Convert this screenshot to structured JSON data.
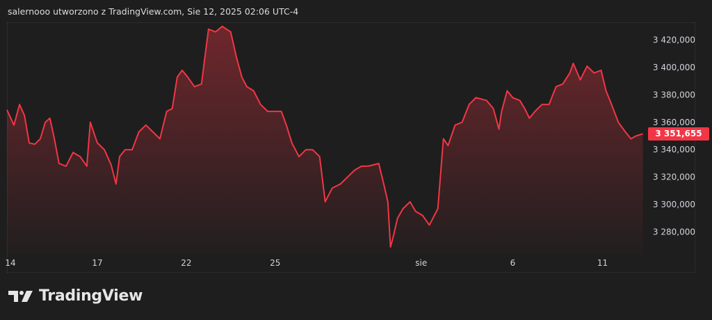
{
  "header": {
    "attribution": "salernooo utworzono z TradingView.com, Sie 12, 2025 02:06 UTC-4"
  },
  "brand": {
    "name": "TradingView",
    "icon": "tradingview-logo-icon"
  },
  "colors": {
    "line": "#f23645",
    "background": "#1e1e1e",
    "axis_text": "#d1d4dc"
  },
  "chart_data": {
    "type": "area",
    "title": "",
    "xlabel": "",
    "ylabel": "",
    "x_units": "trading days since Jul 14",
    "xlim": [
      -0.12,
      21.7
    ],
    "ylim": [
      3264,
      3433
    ],
    "grid": false,
    "x_ticks": [
      {
        "value": 0,
        "label": "14"
      },
      {
        "value": 2.97,
        "label": "17"
      },
      {
        "value": 6.01,
        "label": "22"
      },
      {
        "value": 9.05,
        "label": "25"
      },
      {
        "value": 14.04,
        "label": "sie"
      },
      {
        "value": 17.17,
        "label": "6"
      },
      {
        "value": 20.24,
        "label": "11"
      }
    ],
    "y_ticks": [
      {
        "value": 3420,
        "label": "3 420,000"
      },
      {
        "value": 3400,
        "label": "3 400,000"
      },
      {
        "value": 3380,
        "label": "3 380,000"
      },
      {
        "value": 3360,
        "label": "3 360,000"
      },
      {
        "value": 3340,
        "label": "3 340,000"
      },
      {
        "value": 3320,
        "label": "3 320,000"
      },
      {
        "value": 3300,
        "label": "3 300,000"
      },
      {
        "value": 3280,
        "label": "3 280,000"
      }
    ],
    "last_price": {
      "value": 3351.655,
      "label": "3 351,655"
    },
    "series": [
      {
        "name": "price",
        "x": [
          -0.12,
          0.12,
          0.31,
          0.48,
          0.64,
          0.83,
          1.02,
          1.19,
          1.35,
          1.5,
          1.66,
          1.9,
          2.14,
          2.38,
          2.61,
          2.73,
          2.97,
          3.21,
          3.44,
          3.61,
          3.73,
          3.92,
          4.16,
          4.39,
          4.63,
          4.87,
          5.11,
          5.34,
          5.53,
          5.7,
          5.87,
          6.06,
          6.29,
          6.53,
          6.65,
          6.77,
          7.01,
          7.24,
          7.53,
          7.72,
          7.91,
          8.08,
          8.31,
          8.55,
          8.79,
          9.03,
          9.26,
          9.43,
          9.62,
          9.86,
          10.1,
          10.33,
          10.57,
          10.76,
          11.0,
          11.28,
          11.52,
          11.76,
          12.0,
          12.23,
          12.59,
          12.76,
          12.9,
          12.99,
          13.09,
          13.23,
          13.42,
          13.66,
          13.85,
          14.09,
          14.32,
          14.61,
          14.8,
          14.96,
          15.2,
          15.44,
          15.68,
          15.91,
          16.27,
          16.51,
          16.7,
          16.79,
          16.98,
          17.17,
          17.41,
          17.58,
          17.74,
          17.93,
          18.17,
          18.41,
          18.65,
          18.88,
          19.12,
          19.24,
          19.48,
          19.71,
          19.95,
          20.19,
          20.36,
          20.55,
          20.78,
          21.02,
          21.21,
          21.38,
          21.62
        ],
        "values": [
          3369,
          3358,
          3373,
          3365,
          3345,
          3344,
          3348,
          3360,
          3363,
          3348,
          3330,
          3328,
          3338,
          3335,
          3328,
          3360,
          3345,
          3340,
          3329,
          3315,
          3335,
          3340,
          3340,
          3353,
          3358,
          3353,
          3348,
          3368,
          3370,
          3393,
          3398,
          3393,
          3386,
          3388,
          3408,
          3428,
          3426,
          3430,
          3426,
          3408,
          3393,
          3386,
          3383,
          3373,
          3368,
          3368,
          3368,
          3358,
          3345,
          3335,
          3340,
          3340,
          3335,
          3302,
          3312,
          3315,
          3320,
          3325,
          3328,
          3328,
          3330,
          3315,
          3302,
          3269,
          3277,
          3290,
          3297,
          3302,
          3295,
          3292,
          3285,
          3297,
          3348,
          3343,
          3358,
          3360,
          3373,
          3378,
          3376,
          3370,
          3355,
          3368,
          3383,
          3378,
          3376,
          3370,
          3363,
          3368,
          3373,
          3373,
          3386,
          3388,
          3396,
          3403,
          3391,
          3401,
          3396,
          3398,
          3383,
          3373,
          3360,
          3353,
          3348,
          3350,
          3351.655
        ]
      }
    ]
  }
}
